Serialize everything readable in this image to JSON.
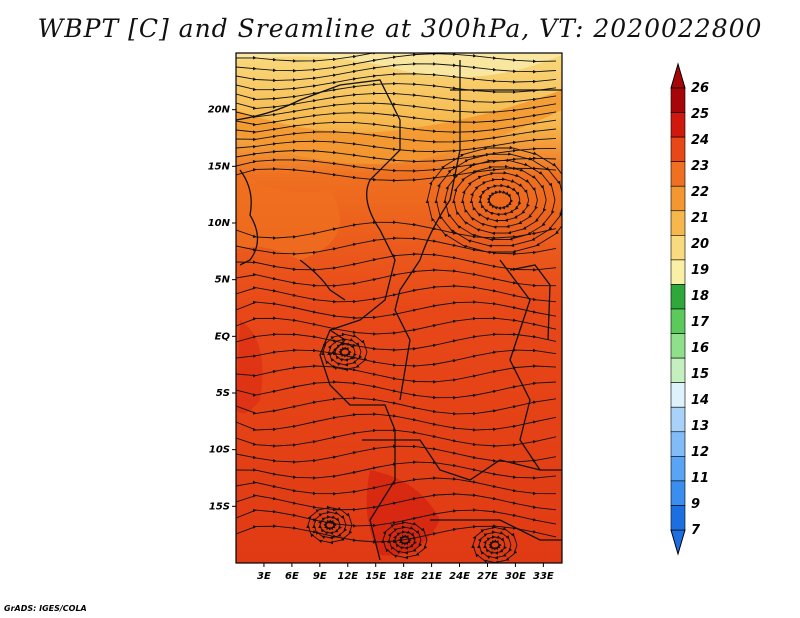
{
  "title": "WBPT [C] and Sreamline at 300hPa, VT: 2020022800",
  "credit": "GrADS: IGES/COLA",
  "map": {
    "lat_labels": [
      "20N",
      "15N",
      "10N",
      "5N",
      "EQ",
      "5S",
      "10S",
      "15S"
    ],
    "lat_values": [
      20,
      15,
      10,
      5,
      0,
      -5,
      -10,
      -15
    ],
    "lon_labels": [
      "3E",
      "6E",
      "9E",
      "12E",
      "15E",
      "18E",
      "21E",
      "24E",
      "27E",
      "30E",
      "33E"
    ],
    "lon_values": [
      3,
      6,
      9,
      12,
      15,
      18,
      21,
      24,
      27,
      30,
      33
    ],
    "lat_range": [
      -20,
      25
    ],
    "lon_range": [
      0,
      35
    ],
    "overlay": "streamlines"
  },
  "colorbar": {
    "labels": [
      "7",
      "9",
      "11",
      "12",
      "13",
      "14",
      "15",
      "16",
      "17",
      "18",
      "19",
      "20",
      "21",
      "22",
      "23",
      "24",
      "25",
      "26"
    ],
    "colors": [
      "#1c6fe0",
      "#3a8ef0",
      "#5aa4f5",
      "#82bcf8",
      "#a8d2fa",
      "#def2fc",
      "#c4f0c0",
      "#8fe08a",
      "#5cca5a",
      "#2fa83a",
      "#f9f0a6",
      "#f9da7f",
      "#f6b84c",
      "#f39830",
      "#ef7020",
      "#e84818",
      "#d0180e",
      "#a80508"
    ],
    "arrow_low_color": "#1c6fe0",
    "arrow_high_color": "#a80508"
  }
}
